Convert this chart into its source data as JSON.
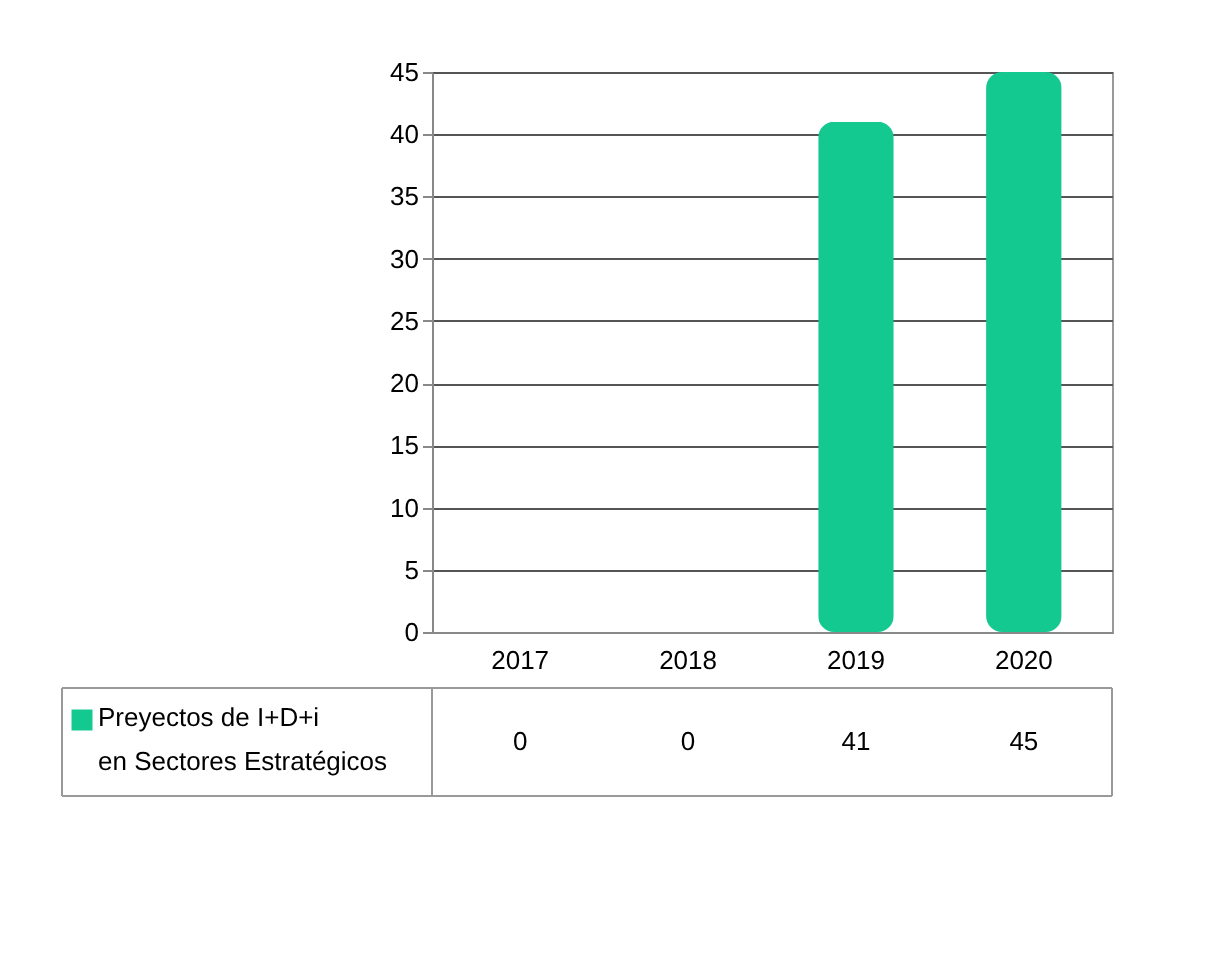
{
  "chart_data": {
    "type": "bar",
    "categories": [
      "2017",
      "2018",
      "2019",
      "2020"
    ],
    "series": [
      {
        "name": "Preyectos de I+D+i en Sectores Estratégicos",
        "color": "#13c98f",
        "values": [
          0,
          0,
          41,
          45
        ]
      }
    ],
    "ylim": [
      0,
      45
    ],
    "yticks": [
      0,
      5,
      10,
      15,
      20,
      25,
      30,
      35,
      40,
      45
    ],
    "grid": "y",
    "data_labels": true,
    "legend": "bottom"
  }
}
